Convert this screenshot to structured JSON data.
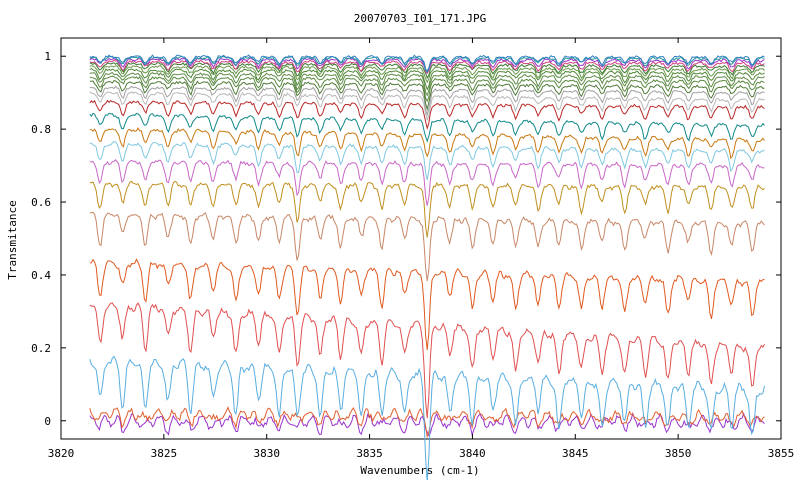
{
  "chart_data": {
    "type": "line",
    "title": "20070703_I01_171.JPG",
    "xlabel": "Wavenumbers (cm-1)",
    "ylabel": "Transmitance",
    "xlim": [
      3820,
      3855
    ],
    "ylim": [
      -0.05,
      1.05
    ],
    "x_data_range": [
      3821.4,
      3854.2
    ],
    "xticks": [
      3820,
      3825,
      3830,
      3835,
      3840,
      3845,
      3850,
      3855
    ],
    "yticks": [
      0,
      0.2,
      0.4,
      0.6,
      0.8,
      1
    ],
    "xtick_labels": [
      "3820",
      "3825",
      "3830",
      "3835",
      "3840",
      "3845",
      "3850",
      "3855"
    ],
    "ytick_labels": [
      "0",
      "0.2",
      "0.4",
      "0.6",
      "0.8",
      "1"
    ],
    "grid": false,
    "legend": "none",
    "absorption_lines": [
      3821.9,
      3823.0,
      3824.1,
      3825.2,
      3826.3,
      3827.4,
      3828.5,
      3829.6,
      3830.6,
      3831.5,
      3832.6,
      3833.6,
      3834.6,
      3835.6,
      3836.7,
      3837.8,
      3838.9,
      3840.0,
      3841.0,
      3842.1,
      3843.2,
      3844.2,
      3845.3,
      3846.3,
      3847.4,
      3848.4,
      3849.5,
      3850.5,
      3851.6,
      3852.6,
      3853.6
    ],
    "series": [
      {
        "color": "#9933cc",
        "start": 0.0,
        "end": 0.0
      },
      {
        "color": "#e06030",
        "start": 0.02,
        "end": 0.012
      },
      {
        "color": "#5aaee0",
        "start": 0.165,
        "end": 0.085
      },
      {
        "color": "#e05050",
        "start": 0.32,
        "end": 0.2
      },
      {
        "color": "#e05a20",
        "start": 0.435,
        "end": 0.38
      },
      {
        "color": "#c88868",
        "start": 0.565,
        "end": 0.54
      },
      {
        "color": "#c09020",
        "start": 0.65,
        "end": 0.64
      },
      {
        "color": "#c868c8",
        "start": 0.71,
        "end": 0.7
      },
      {
        "color": "#80c8e0",
        "start": 0.76,
        "end": 0.74
      },
      {
        "color": "#c87810",
        "start": 0.8,
        "end": 0.77
      },
      {
        "color": "#108888",
        "start": 0.84,
        "end": 0.81
      },
      {
        "color": "#b82828",
        "start": 0.875,
        "end": 0.86
      },
      {
        "color": "#b8b8b8",
        "start": 0.9,
        "end": 0.88
      },
      {
        "color": "#a0a0a0",
        "start": 0.915,
        "end": 0.9
      },
      {
        "color": "#507a38",
        "start": 0.93,
        "end": 0.915
      },
      {
        "color": "#5a8a40",
        "start": 0.942,
        "end": 0.93
      },
      {
        "color": "#608c48",
        "start": 0.953,
        "end": 0.942
      },
      {
        "color": "#508838",
        "start": 0.963,
        "end": 0.953
      },
      {
        "color": "#6a9a4a",
        "start": 0.972,
        "end": 0.963
      },
      {
        "color": "#3a7a30",
        "start": 0.98,
        "end": 0.972
      },
      {
        "color": "#d04080",
        "start": 0.986,
        "end": 0.98
      },
      {
        "color": "#9933cc",
        "start": 0.992,
        "end": 0.988
      },
      {
        "color": "#2a9a9a",
        "start": 0.996,
        "end": 0.994
      },
      {
        "color": "#3080c0",
        "start": 0.999,
        "end": 0.998
      }
    ]
  }
}
